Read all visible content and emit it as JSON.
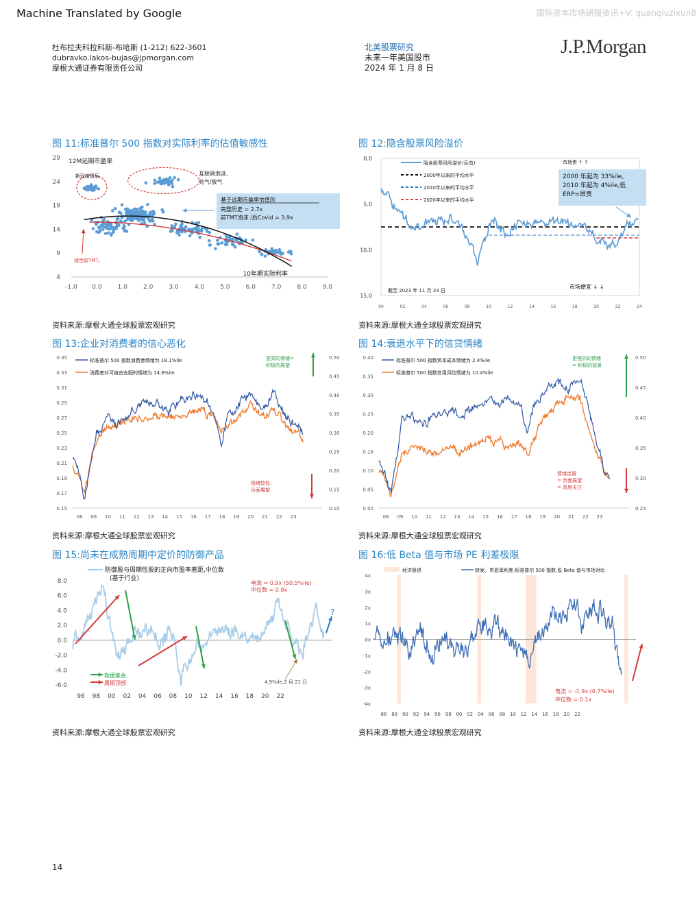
{
  "banner": "Machine Translated by Google",
  "watermark": "国际资本市场研报资讯+V: quanqiuzixun8",
  "author": {
    "name_phone": "杜布拉夫科拉科斯-布哈斯 (1-212) 622-3601",
    "email": "dubravko.lakos-bujas@jpmorgan.com",
    "company": "摩根大通证券有限责任公司"
  },
  "meta": {
    "section": "北美股票研究",
    "title": "未来一年美国股市",
    "date": "2024 年 1 月 8 日"
  },
  "logo": "J.P.Morgan",
  "page_number": "14",
  "figures": {
    "f11": {
      "title": "图 11:标准普尔 500 指数对实际利率的估值敏感性",
      "source": "资料来源:摩根大通全球股票宏观研究"
    },
    "f12": {
      "title": "图 12:隐含股票风险溢价",
      "source": "资料来源:摩根大通全球股票宏观研究"
    },
    "f13": {
      "title": "图 13:企业对消费者的信心恶化",
      "source": "资料来源:摩根大通全球股票宏观研究"
    },
    "f14": {
      "title": "图 14:衰退水平下的信贷情绪",
      "source": "资料来源:摩根大通全球股票宏观研究"
    },
    "f15": {
      "title": "图 15:尚未在成熟周期中定价的防御产品",
      "source": "资料来源:摩根大通全球股票宏观研究"
    },
    "f16": {
      "title": "图 16:低 Beta 值与市场 PE 利差极限",
      "source": "资料来源:摩根大通全球股票宏观研究"
    }
  },
  "chart_data": [
    {
      "id": "f11",
      "type": "scatter",
      "ylabel": "12M远期市盈率",
      "xlabel": "10年期实际利率",
      "xlim": [
        -1.0,
        9.0
      ],
      "ylim": [
        4,
        29
      ],
      "x_ticks": [
        "-1.0",
        "0.0",
        "1.0",
        "2.0",
        "3.0",
        "4.0",
        "5.0",
        "6.0",
        "7.0",
        "8.0",
        "9.0"
      ],
      "y_ticks": [
        "4",
        "9",
        "14",
        "19",
        "24",
        "29"
      ],
      "annotations": {
        "covid": "新冠疫情后",
        "bubble_line1": "互联网泡沫,",
        "bubble_line2": "充气/放气",
        "box_title": "基于远期市盈率估值的",
        "box_line1": "完整历史 = 2.7x",
        "box_line2": "前TMT泡沫 /后Covid = 3.9x",
        "fit_note": "适合前TMT。"
      },
      "clusters": [
        {
          "cx": -0.2,
          "cy": 22.5,
          "sx": 0.25,
          "sy": 1.0,
          "n": 28
        },
        {
          "cx": 2.6,
          "cy": 24.0,
          "sx": 0.5,
          "sy": 1.1,
          "n": 32
        },
        {
          "cx": 1.6,
          "cy": 17.0,
          "sx": 0.8,
          "sy": 1.8,
          "n": 130
        },
        {
          "cx": 0.5,
          "cy": 14.5,
          "sx": 0.6,
          "sy": 1.6,
          "n": 60
        },
        {
          "cx": 3.6,
          "cy": 14.0,
          "sx": 0.8,
          "sy": 1.4,
          "n": 60
        },
        {
          "cx": 5.2,
          "cy": 11.5,
          "sx": 0.8,
          "sy": 1.2,
          "n": 45
        },
        {
          "cx": 7.0,
          "cy": 9.2,
          "sx": 0.6,
          "sy": 0.7,
          "n": 30
        }
      ]
    },
    {
      "id": "f12",
      "type": "line",
      "ylim": [
        15.0,
        0.0
      ],
      "y_ticks": [
        "0.0",
        "5.0",
        "10.0",
        "15.0"
      ],
      "x_ticks": [
        "00",
        "02",
        "04",
        "06",
        "08",
        "10",
        "12",
        "14",
        "16",
        "18",
        "20",
        "22",
        "24"
      ],
      "legend": [
        "隐含股票风险溢价(反向)",
        "2000年以来的平均水平",
        "2010年以来的平均水平",
        "2020年以来的平均水平"
      ],
      "levels": {
        "avg2000": 7.5,
        "avg2010": 8.4,
        "avg2020": 8.7
      },
      "annotations": {
        "expensive": "市场贵 ↑ ↑",
        "box_line1": "2000 年起为 33%ile,",
        "box_line2": "2010 年起为 4%ile,低",
        "box_line3": "ERP=昂贵",
        "asof": "截至 2023 年 11 月 24 日",
        "cheap": "市场便宜 ↓ ↓"
      },
      "anchors": [
        [
          0,
          3.5
        ],
        [
          1.5,
          5.6
        ],
        [
          3,
          7.5
        ],
        [
          5,
          7.0
        ],
        [
          7,
          6.5
        ],
        [
          8,
          8.5
        ],
        [
          9,
          11.5
        ],
        [
          9.5,
          9.0
        ],
        [
          10.5,
          6.5
        ],
        [
          11.5,
          8.5
        ],
        [
          13,
          7.0
        ],
        [
          15,
          7.0
        ],
        [
          17,
          7.2
        ],
        [
          19,
          7.5
        ],
        [
          20,
          8.5
        ],
        [
          21,
          9.8
        ],
        [
          22,
          9.0
        ],
        [
          23,
          7.0
        ],
        [
          23.9,
          6.8
        ]
      ]
    },
    {
      "id": "f13",
      "type": "line",
      "left_ylim": [
        0.15,
        0.35
      ],
      "right_ylim": [
        0.1,
        0.5
      ],
      "left_ticks": [
        "0.35",
        "0.33",
        "0.31",
        "0.29",
        "0.27",
        "0.25",
        "0.23",
        "0.21",
        "0.19",
        "0.17",
        "0.15"
      ],
      "right_ticks": [
        "0.50",
        "0.45",
        "0.40",
        "0.35",
        "0.30",
        "0.25",
        "0.20",
        "0.15",
        "0.10"
      ],
      "x_ticks": [
        "08",
        "09",
        "10",
        "11",
        "12",
        "13",
        "14",
        "15",
        "16",
        "17",
        "18",
        "19",
        "20",
        "21",
        "22",
        "23"
      ],
      "series": [
        {
          "name": "标准普尔 500 指数消费者情绪为 18.1%ile",
          "color": "#2f55a4"
        },
        {
          "name": "消费者对可自由支配的情绪为 14.6%ile",
          "color": "#ee7d31"
        }
      ],
      "annotations": {
        "positive_line1": "更高的情绪=",
        "positive_line2": "积极的展望",
        "negative_line1": "情绪较低:",
        "negative_line2": "负面展望"
      },
      "anchors_a": [
        [
          0,
          0.22
        ],
        [
          0.5,
          0.2
        ],
        [
          1,
          0.16
        ],
        [
          2,
          0.25
        ],
        [
          3,
          0.27
        ],
        [
          4,
          0.26
        ],
        [
          5,
          0.28
        ],
        [
          6,
          0.29
        ],
        [
          7,
          0.29
        ],
        [
          8,
          0.28
        ],
        [
          9,
          0.29
        ],
        [
          10,
          0.3
        ],
        [
          11,
          0.3
        ],
        [
          12,
          0.27
        ],
        [
          12.5,
          0.23
        ],
        [
          13,
          0.27
        ],
        [
          14,
          0.29
        ],
        [
          15,
          0.3
        ],
        [
          16,
          0.28
        ],
        [
          17,
          0.3
        ],
        [
          18,
          0.27
        ],
        [
          19,
          0.26
        ],
        [
          19.4,
          0.25
        ]
      ],
      "anchors_b": [
        [
          0,
          0.21
        ],
        [
          0.5,
          0.19
        ],
        [
          1,
          0.17
        ],
        [
          2,
          0.24
        ],
        [
          3,
          0.26
        ],
        [
          4,
          0.26
        ],
        [
          5,
          0.27
        ],
        [
          6,
          0.27
        ],
        [
          7,
          0.27
        ],
        [
          8,
          0.27
        ],
        [
          9,
          0.27
        ],
        [
          10,
          0.28
        ],
        [
          11,
          0.28
        ],
        [
          12,
          0.27
        ],
        [
          12.5,
          0.25
        ],
        [
          13,
          0.26
        ],
        [
          14,
          0.27
        ],
        [
          15,
          0.29
        ],
        [
          16,
          0.27
        ],
        [
          17,
          0.28
        ],
        [
          18,
          0.26
        ],
        [
          19,
          0.25
        ],
        [
          19.4,
          0.24
        ]
      ]
    },
    {
      "id": "f14",
      "type": "line",
      "left_ylim": [
        0.0,
        0.4
      ],
      "right_ylim": [
        0.25,
        0.5
      ],
      "left_ticks": [
        "0.40",
        "0.35",
        "0.30",
        "0.25",
        "0.20",
        "0.15",
        "0.10",
        "0.05",
        "0.00"
      ],
      "right_ticks": [
        "0.50",
        "0.45",
        "0.40",
        "0.35",
        "0.30",
        "0.25"
      ],
      "x_ticks": [
        "08",
        "09",
        "10",
        "11",
        "12",
        "13",
        "14",
        "15",
        "16",
        "17",
        "18",
        "19",
        "20",
        "21",
        "22",
        "23"
      ],
      "series": [
        {
          "name": "标准普尔 500 指数资本成本情绪为 2.4%ile",
          "color": "#2f55a4"
        },
        {
          "name": "标准普尔 500 指数信用风险情绪为 10.4%ile",
          "color": "#ee7d31"
        }
      ],
      "annotations": {
        "positive_line1": "更强烈的情绪",
        "positive_line2": "= 积极的前景",
        "negative_line1": "情绪走弱",
        "negative_line2": "= 负面展望",
        "negative_line3": "= 高度关注"
      },
      "anchors_a": [
        [
          0,
          0.13
        ],
        [
          0.5,
          0.1
        ],
        [
          1,
          0.04
        ],
        [
          2,
          0.25
        ],
        [
          3,
          0.24
        ],
        [
          4,
          0.23
        ],
        [
          5,
          0.25
        ],
        [
          6,
          0.26
        ],
        [
          7,
          0.24
        ],
        [
          8,
          0.27
        ],
        [
          9,
          0.28
        ],
        [
          10,
          0.27
        ],
        [
          11,
          0.29
        ],
        [
          12,
          0.26
        ],
        [
          12.5,
          0.2
        ],
        [
          13,
          0.27
        ],
        [
          14,
          0.31
        ],
        [
          15,
          0.33
        ],
        [
          16,
          0.32
        ],
        [
          17,
          0.34
        ],
        [
          18,
          0.22
        ],
        [
          19,
          0.09
        ],
        [
          19.4,
          0.07
        ]
      ],
      "anchors_b": [
        [
          0,
          0.1
        ],
        [
          0.5,
          0.08
        ],
        [
          1,
          0.03
        ],
        [
          2,
          0.15
        ],
        [
          3,
          0.16
        ],
        [
          4,
          0.15
        ],
        [
          5,
          0.15
        ],
        [
          6,
          0.16
        ],
        [
          7,
          0.15
        ],
        [
          8,
          0.17
        ],
        [
          9,
          0.18
        ],
        [
          10,
          0.17
        ],
        [
          11,
          0.17
        ],
        [
          12,
          0.17
        ],
        [
          12.5,
          0.14
        ],
        [
          13,
          0.18
        ],
        [
          14,
          0.24
        ],
        [
          15,
          0.27
        ],
        [
          16,
          0.3
        ],
        [
          17,
          0.29
        ],
        [
          18,
          0.18
        ],
        [
          19,
          0.1
        ],
        [
          19.4,
          0.08
        ]
      ]
    },
    {
      "id": "f15",
      "type": "line",
      "ylim": [
        -6.0,
        8.0
      ],
      "y_ticks": [
        "8.0",
        "6.0",
        "4.0",
        "2.0",
        "0.0",
        "-2.0",
        "-4.0",
        "-6.0"
      ],
      "x_ticks": [
        "96",
        "98",
        "00",
        "02",
        "04",
        "06",
        "08",
        "10",
        "12",
        "14",
        "16",
        "18",
        "20",
        "22"
      ],
      "series": [
        {
          "name": "防御股与周期性股的正向市盈率差距,中位数",
          "color": "#a9cde9"
        }
      ],
      "legend_sub": "(基于行业)",
      "annotations": {
        "current": "电流 = 0.9x (50.5%ile)",
        "median": "中位数 = 0.8x",
        "rally": "救援集会",
        "cycle": "周期顶部",
        "asof": "4.9%ile,2 月 21 日",
        "question": "?"
      },
      "anchors": [
        [
          0,
          -0.3
        ],
        [
          1,
          1.2
        ],
        [
          2.5,
          4.0
        ],
        [
          3.8,
          7.2
        ],
        [
          4.5,
          3.0
        ],
        [
          5.2,
          0.2
        ],
        [
          5.8,
          -1.5
        ],
        [
          7,
          -1.0
        ],
        [
          8,
          0.8
        ],
        [
          9,
          0.5
        ],
        [
          10,
          1.2
        ],
        [
          11,
          -0.8
        ],
        [
          12.2,
          1.0
        ],
        [
          12.8,
          0.2
        ],
        [
          13.3,
          -2.5
        ],
        [
          13.8,
          -5.5
        ],
        [
          14.5,
          -3.0
        ],
        [
          15.5,
          -1.5
        ],
        [
          17,
          0.5
        ],
        [
          18.5,
          1.5
        ],
        [
          20,
          1.0
        ],
        [
          22,
          0.5
        ],
        [
          23.5,
          0.0
        ],
        [
          25,
          2.0
        ],
        [
          26.2,
          5.0
        ],
        [
          27.2,
          2.0
        ],
        [
          28.2,
          -0.5
        ],
        [
          29.2,
          -2.0
        ],
        [
          30.2,
          1.5
        ],
        [
          31,
          4.5
        ],
        [
          32,
          0.2
        ]
      ]
    },
    {
      "id": "f16",
      "type": "line",
      "ylim": [
        -4,
        4
      ],
      "y_ticks": [
        "4x",
        "3x",
        "2x",
        "1x",
        "0x",
        "-1x",
        "-2x",
        "-3x",
        "-4x"
      ],
      "x_ticks": [
        "86",
        "88",
        "90",
        "92",
        "94",
        "96",
        "98",
        "00",
        "02",
        "04",
        "06",
        "08",
        "10",
        "12",
        "14",
        "16",
        "18",
        "20",
        "22"
      ],
      "series": [
        {
          "name": "经济衰退",
          "color": "#fde6d8"
        },
        {
          "name": "转发。市盈率利差,标准普尔 500 指数,低 Beta 值与市场对比",
          "color": "#3f6fb5"
        }
      ],
      "recessions": [
        [
          4.5,
          5.2
        ],
        [
          19.8,
          20.5
        ],
        [
          29.0,
          31.0
        ],
        [
          47.8,
          48.5
        ]
      ],
      "annotations": {
        "current": "电流 = -1.9x (0.7%ile)",
        "median": "中位数 = 0.1x"
      },
      "anchors": [
        [
          0,
          0.7
        ],
        [
          3,
          0.1
        ],
        [
          6,
          -0.3
        ],
        [
          9,
          0.2
        ],
        [
          11,
          -0.8
        ],
        [
          14,
          -0.2
        ],
        [
          17,
          -1.1
        ],
        [
          20,
          0.3
        ],
        [
          22,
          0.9
        ],
        [
          24,
          0.7
        ],
        [
          27,
          -0.5
        ],
        [
          30,
          -0.8
        ],
        [
          32,
          0.2
        ],
        [
          34,
          1.2
        ],
        [
          36,
          1.5
        ],
        [
          38,
          2.0
        ],
        [
          40,
          1.0
        ],
        [
          42,
          2.4
        ],
        [
          44,
          1.5
        ],
        [
          45.5,
          0.8
        ],
        [
          46.5,
          -1.0
        ],
        [
          47.3,
          -2.6
        ]
      ]
    }
  ]
}
